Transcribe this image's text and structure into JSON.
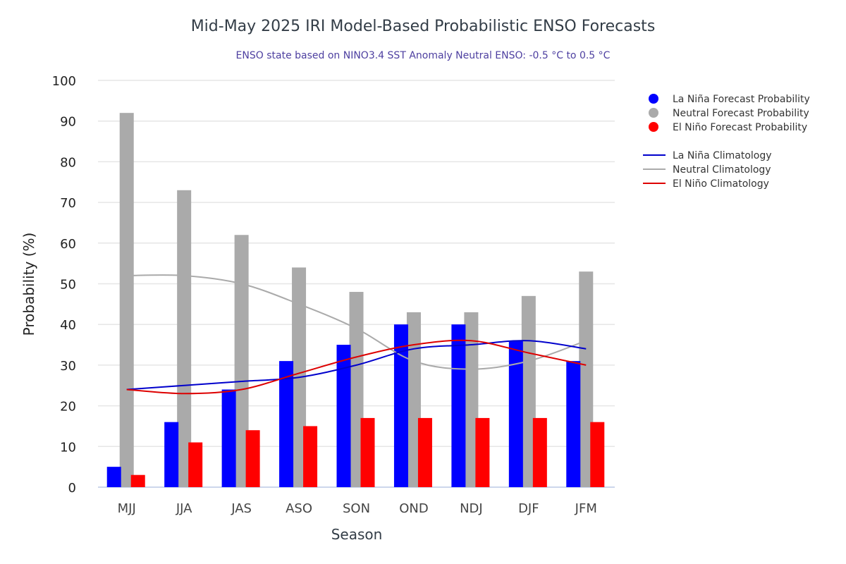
{
  "chart_data": {
    "type": "bar",
    "title": "Mid-May 2025 IRI Model-Based Probabilistic ENSO Forecasts",
    "subtitle": "ENSO state based on NINO3.4 SST Anomaly Neutral ENSO: -0.5 °C to 0.5 °C",
    "xlabel": "Season",
    "ylabel": "Probability (%)",
    "ylim": [
      0,
      100
    ],
    "yticks": [
      0,
      10,
      20,
      30,
      40,
      50,
      60,
      70,
      80,
      90,
      100
    ],
    "grid": true,
    "legend_position": "right",
    "categories": [
      "MJJ",
      "JJA",
      "JAS",
      "ASO",
      "SON",
      "OND",
      "NDJ",
      "DJF",
      "JFM"
    ],
    "series": [
      {
        "name": "La Niña Forecast Probability",
        "kind": "bar",
        "color": "#0000ff",
        "values": [
          5,
          16,
          24,
          31,
          35,
          40,
          40,
          36,
          31
        ]
      },
      {
        "name": "Neutral Forecast Probability",
        "kind": "bar",
        "color": "#aaaaaa",
        "values": [
          92,
          73,
          62,
          54,
          48,
          43,
          43,
          47,
          53
        ]
      },
      {
        "name": "El Niño Forecast Probability",
        "kind": "bar",
        "color": "#ff0000",
        "values": [
          3,
          11,
          14,
          15,
          17,
          17,
          17,
          17,
          16
        ]
      },
      {
        "name": "La Niña Climatology",
        "kind": "line",
        "color": "#0000cc",
        "values": [
          24,
          25,
          26,
          27,
          30,
          34,
          35,
          36,
          34
        ]
      },
      {
        "name": "Neutral Climatology",
        "kind": "line",
        "color": "#aaaaaa",
        "values": [
          52,
          52,
          50,
          45,
          39,
          31,
          29,
          31,
          36
        ]
      },
      {
        "name": "El Niño Climatology",
        "kind": "line",
        "color": "#dd0000",
        "values": [
          24,
          23,
          24,
          28,
          32,
          35,
          36,
          33,
          30
        ]
      }
    ]
  }
}
